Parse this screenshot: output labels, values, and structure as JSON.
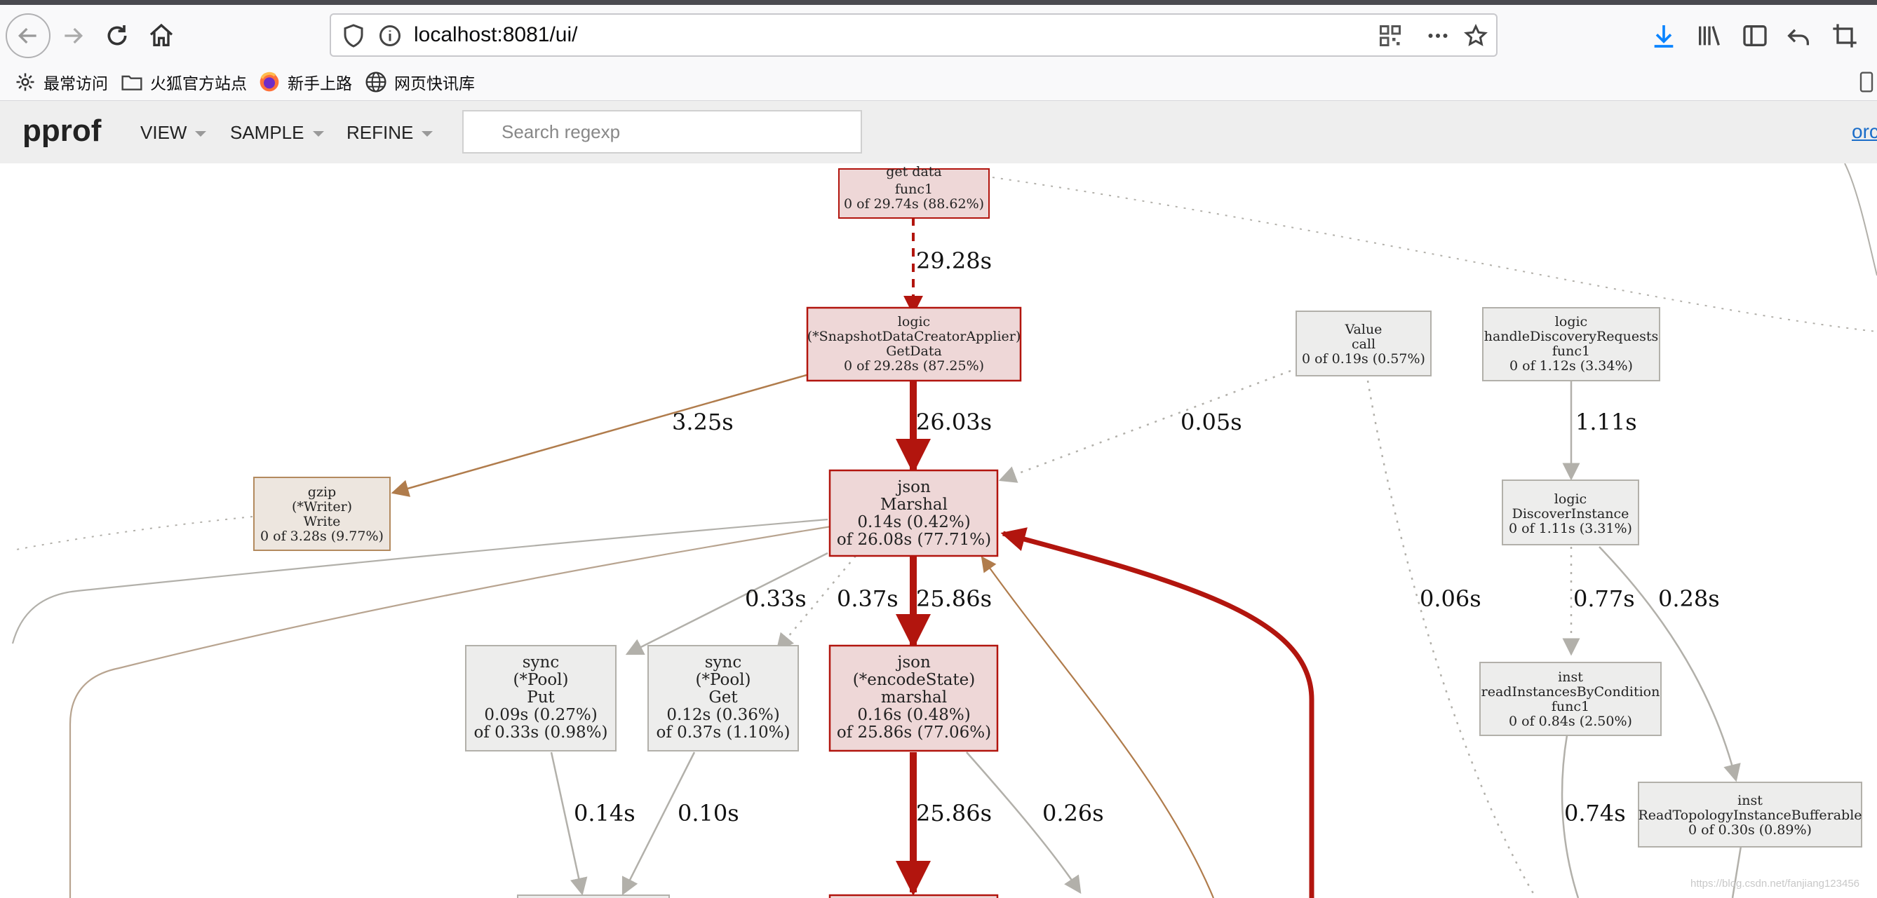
{
  "browser": {
    "url": "localhost:8081/ui/",
    "bookmarks": [
      "最常访问",
      "火狐官方站点",
      "新手上路",
      "网页快讯库"
    ]
  },
  "pprof": {
    "logo": "pprof",
    "menus": [
      "VIEW",
      "SAMPLE",
      "REFINE"
    ],
    "search_placeholder": "Search regexp",
    "right_link": "orc"
  },
  "graph": {
    "nodes": {
      "getdata_func1": [
        "get data",
        "func1",
        "0 of 29.74s (88.62%)"
      ],
      "getdata": [
        "logic",
        "(*SnapshotDataCreatorApplier)",
        "GetData",
        "0 of 29.28s (87.25%)"
      ],
      "value_call": [
        "Value",
        "call",
        "0 of 0.19s (0.57%)"
      ],
      "handle_discovery": [
        "logic",
        "handleDiscoveryRequests",
        "func1",
        "0 of 1.12s (3.34%)"
      ],
      "gzip_write": [
        "gzip",
        "(*Writer)",
        "Write",
        "0 of 3.28s (9.77%)"
      ],
      "json_marshal": [
        "json",
        "Marshal",
        "0.14s (0.42%)",
        "of 26.08s (77.71%)"
      ],
      "discover_instance": [
        "logic",
        "DiscoverInstance",
        "0 of 1.11s (3.31%)"
      ],
      "sync_put": [
        "sync",
        "(*Pool)",
        "Put",
        "0.09s (0.27%)",
        "of 0.33s (0.98%)"
      ],
      "sync_get": [
        "sync",
        "(*Pool)",
        "Get",
        "0.12s (0.36%)",
        "of 0.37s (1.10%)"
      ],
      "encode_marshal": [
        "json",
        "(*encodeState)",
        "marshal",
        "0.16s (0.48%)",
        "of 25.86s (77.06%)"
      ],
      "read_instances": [
        "inst",
        "readInstancesByCondition",
        "func1",
        "0 of 0.84s (2.50%)"
      ],
      "read_topology": [
        "inst",
        "ReadTopologyInstanceBufferable",
        "0 of 0.30s (0.89%)"
      ]
    },
    "edges": {
      "e1": "29.28s",
      "e2": "3.25s",
      "e3": "26.03s",
      "e4": "0.05s",
      "e5": "1.11s",
      "e6": "0.33s",
      "e7": "0.37s",
      "e8": "25.86s",
      "e9": "0.06s",
      "e10": "0.77s",
      "e11": "0.28s",
      "e12": "0.14s",
      "e13": "0.10s",
      "e14": "25.86s",
      "e15": "0.26s",
      "e16": "0.74s"
    },
    "colors": {
      "hot_fill": "#eed7d7",
      "hot_stroke": "#b2150e",
      "gzip_fill": "#ede6df",
      "gzip_stroke": "#b38a5e",
      "cold_fill": "#ededec",
      "cold_stroke": "#b2b0aa"
    }
  },
  "watermark": "https://blog.csdn.net/fanjiang123456"
}
